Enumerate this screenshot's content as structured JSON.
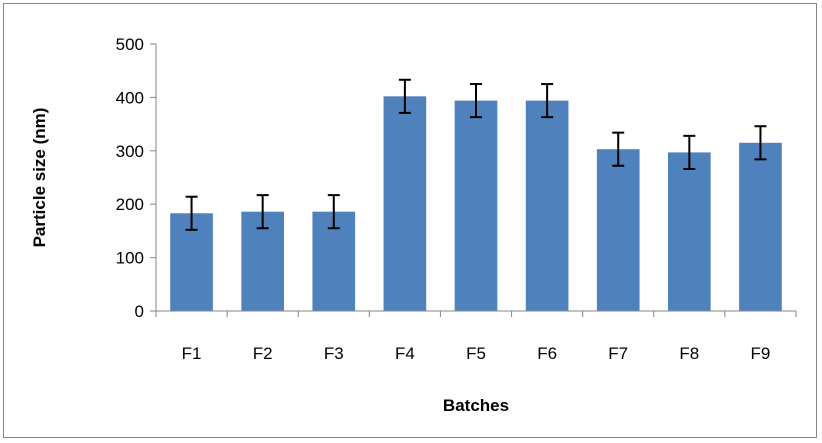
{
  "chart_data": {
    "type": "bar",
    "title": "",
    "xlabel": "Batches",
    "ylabel": "Particle size (nm)",
    "categories": [
      "F1",
      "F2",
      "F3",
      "F4",
      "F5",
      "F6",
      "F7",
      "F8",
      "F9"
    ],
    "values": [
      183,
      186,
      186,
      402,
      394,
      394,
      303,
      297,
      315
    ],
    "error": [
      31,
      31,
      31,
      31,
      31,
      31,
      31,
      31,
      31
    ],
    "ylim": [
      0,
      500
    ],
    "yticks": [
      0,
      100,
      200,
      300,
      400,
      500
    ],
    "grid": false,
    "legend": "none",
    "bar_color": "#4F81BD",
    "error_color": "#000000"
  }
}
